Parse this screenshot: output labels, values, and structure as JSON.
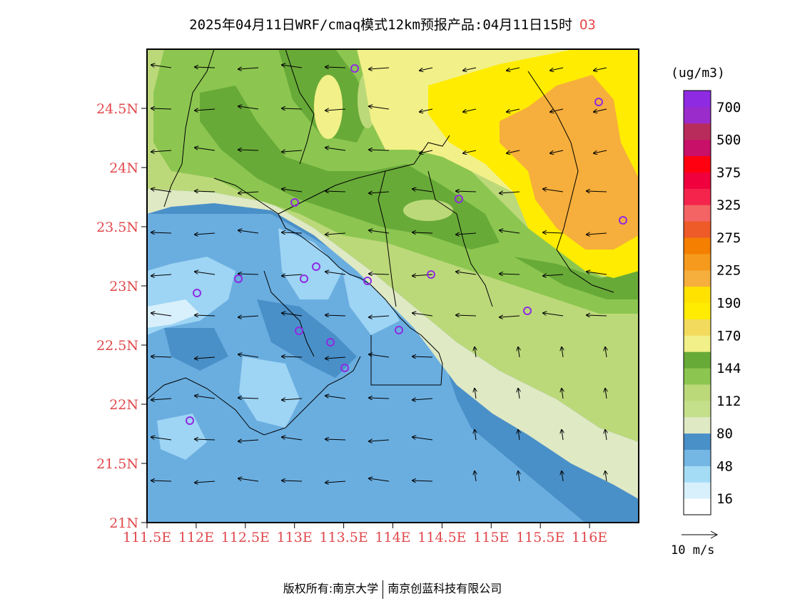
{
  "title": {
    "text": "2025年04月11日WRF/cmaq模式12km预报产品:04月11日15时",
    "species": "O3"
  },
  "map": {
    "lat_labels": [
      "24.5N",
      "24N",
      "23.5N",
      "23N",
      "22.5N",
      "22N",
      "21.5N",
      "21N"
    ],
    "lon_labels": [
      "111.5E",
      "112E",
      "112.5E",
      "113E",
      "113.5E",
      "114E",
      "114.5E",
      "115E",
      "115.5E",
      "116E"
    ],
    "lat_range": [
      21.0,
      25.0
    ],
    "lon_range": [
      111.5,
      116.5
    ],
    "colors": {
      "sea_dark": "#4a90c8",
      "sea_mid": "#6aaee0",
      "sea_light": "#9ed4f4",
      "coast_pale": "#dfe9c4",
      "land_light_green": "#bcd97a",
      "land_green": "#8cc650",
      "land_dark_green": "#68aa38",
      "yellow_light": "#f2f088",
      "yellow": "#ffec00",
      "orange": "#f6ae3c",
      "station_marker": "#8e2be2",
      "axis_label": "#e0484c"
    }
  },
  "colorbar": {
    "unit": "(ug/m3)",
    "labels": [
      "700",
      "500",
      "375",
      "325",
      "275",
      "225",
      "190",
      "170",
      "144",
      "112",
      "80",
      "48",
      "16"
    ],
    "colors": [
      "#ffffff",
      "#d8f0fc",
      "#a4dcf6",
      "#74b6e4",
      "#4a90c8",
      "#dfe9c4",
      "#c4e08a",
      "#bcd97a",
      "#8cc650",
      "#68aa38",
      "#f2f088",
      "#f2da5c",
      "#ffec00",
      "#ffe200",
      "#f6ae3c",
      "#f59a1c",
      "#f57f00",
      "#ee5a28",
      "#f46464",
      "#f4244c",
      "#f0003c",
      "#ff0010",
      "#c81068",
      "#b82c5c",
      "#9b2ccc",
      "#8e2be2"
    ]
  },
  "wind_reference": {
    "label": "10 m/s"
  },
  "footer": {
    "left": "版权所有:南京大学",
    "right": "南京创蓝科技有限公司"
  }
}
